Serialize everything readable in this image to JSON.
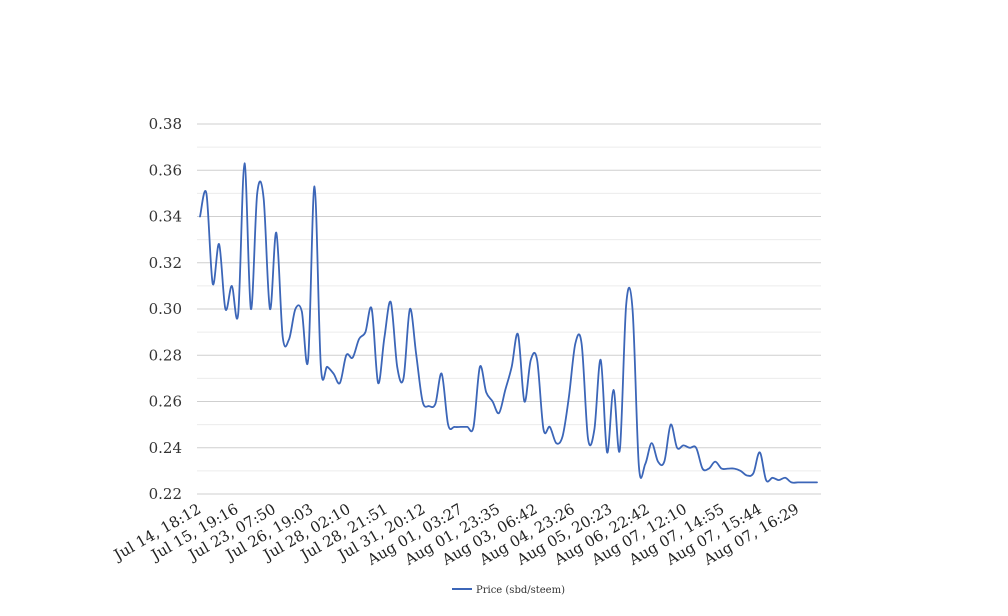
{
  "chart_data": {
    "type": "line",
    "title": "",
    "xlabel": "",
    "ylabel": "",
    "ylim": [
      0.22,
      0.38
    ],
    "yticks": [
      "0.22",
      "0.24",
      "0.26",
      "0.28",
      "0.30",
      "0.32",
      "0.34",
      "0.36",
      "0.38"
    ],
    "ytick_values": [
      0.22,
      0.24,
      0.26,
      0.28,
      0.3,
      0.32,
      0.34,
      0.36,
      0.38
    ],
    "xticks": [
      "Jul 14, 18:12",
      "Jul 15, 19:16",
      "Jul 23, 07:50",
      "Jul 26, 19:03",
      "Jul 28, 02:10",
      "Jul 28, 21:51",
      "Jul 31, 20:12",
      "Aug 01, 03:27",
      "Aug 01, 23:35",
      "Aug 03, 06:42",
      "Aug 04, 23:26",
      "Aug 05, 20:23",
      "Aug 06, 22:42",
      "Aug 07, 12:10",
      "Aug 07, 14:55",
      "Aug 07, 15:44",
      "Aug 07, 16:29"
    ],
    "grid": true,
    "legend_position": "bottom",
    "line_color": "#3c66b8",
    "series": [
      {
        "name": "Price (sbd/steem)",
        "values": [
          0.34,
          0.35,
          0.311,
          0.328,
          0.3,
          0.31,
          0.298,
          0.363,
          0.3,
          0.35,
          0.348,
          0.3,
          0.333,
          0.288,
          0.287,
          0.3,
          0.299,
          0.278,
          0.353,
          0.275,
          0.275,
          0.272,
          0.268,
          0.28,
          0.279,
          0.287,
          0.29,
          0.3,
          0.268,
          0.288,
          0.303,
          0.275,
          0.27,
          0.3,
          0.28,
          0.26,
          0.258,
          0.259,
          0.272,
          0.25,
          0.249,
          0.249,
          0.249,
          0.249,
          0.275,
          0.264,
          0.26,
          0.255,
          0.265,
          0.275,
          0.289,
          0.26,
          0.278,
          0.278,
          0.248,
          0.249,
          0.242,
          0.245,
          0.262,
          0.285,
          0.285,
          0.244,
          0.248,
          0.278,
          0.238,
          0.265,
          0.239,
          0.302,
          0.3,
          0.232,
          0.233,
          0.242,
          0.234,
          0.234,
          0.25,
          0.24,
          0.241,
          0.24,
          0.24,
          0.231,
          0.231,
          0.234,
          0.231,
          0.231,
          0.231,
          0.23,
          0.228,
          0.229,
          0.238,
          0.226,
          0.227,
          0.226,
          0.227,
          0.225,
          0.225,
          0.225,
          0.225,
          0.225
        ]
      }
    ]
  }
}
